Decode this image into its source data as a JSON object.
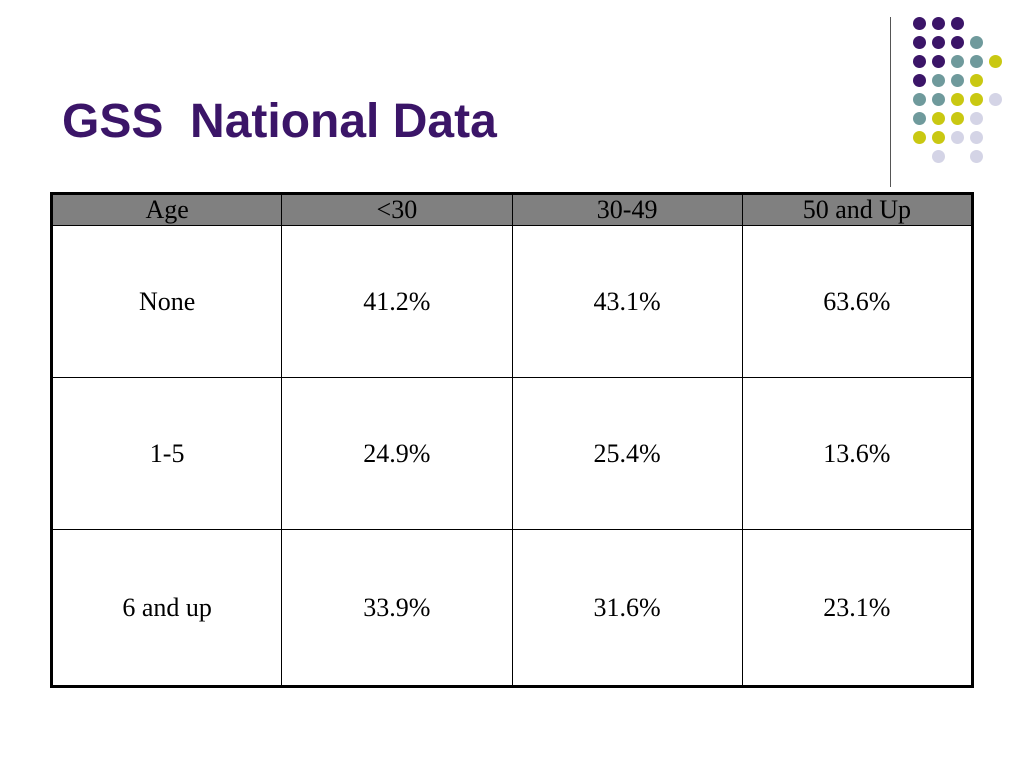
{
  "slide": {
    "title": "GSS  National Data"
  },
  "decoration": {
    "dot_colors": {
      "purple": "#3B1568",
      "teal": "#6F9A9C",
      "yellow": "#C9C812",
      "lavender": "#D4D4E6"
    },
    "divider_color": "#555555"
  },
  "chart_data": {
    "type": "table",
    "columns": [
      "Age",
      "<30",
      "30-49",
      "50 and Up"
    ],
    "categories": [
      "None",
      "1-5",
      "6 and up"
    ],
    "series": [
      {
        "name": "<30",
        "values": [
          "41.2%",
          "24.9%",
          "33.9%"
        ]
      },
      {
        "name": "30-49",
        "values": [
          "43.1%",
          "25.4%",
          "31.6%"
        ]
      },
      {
        "name": "50 and Up",
        "values": [
          "63.6%",
          "13.6%",
          "23.1%"
        ]
      }
    ],
    "header_fill": "#808080"
  }
}
